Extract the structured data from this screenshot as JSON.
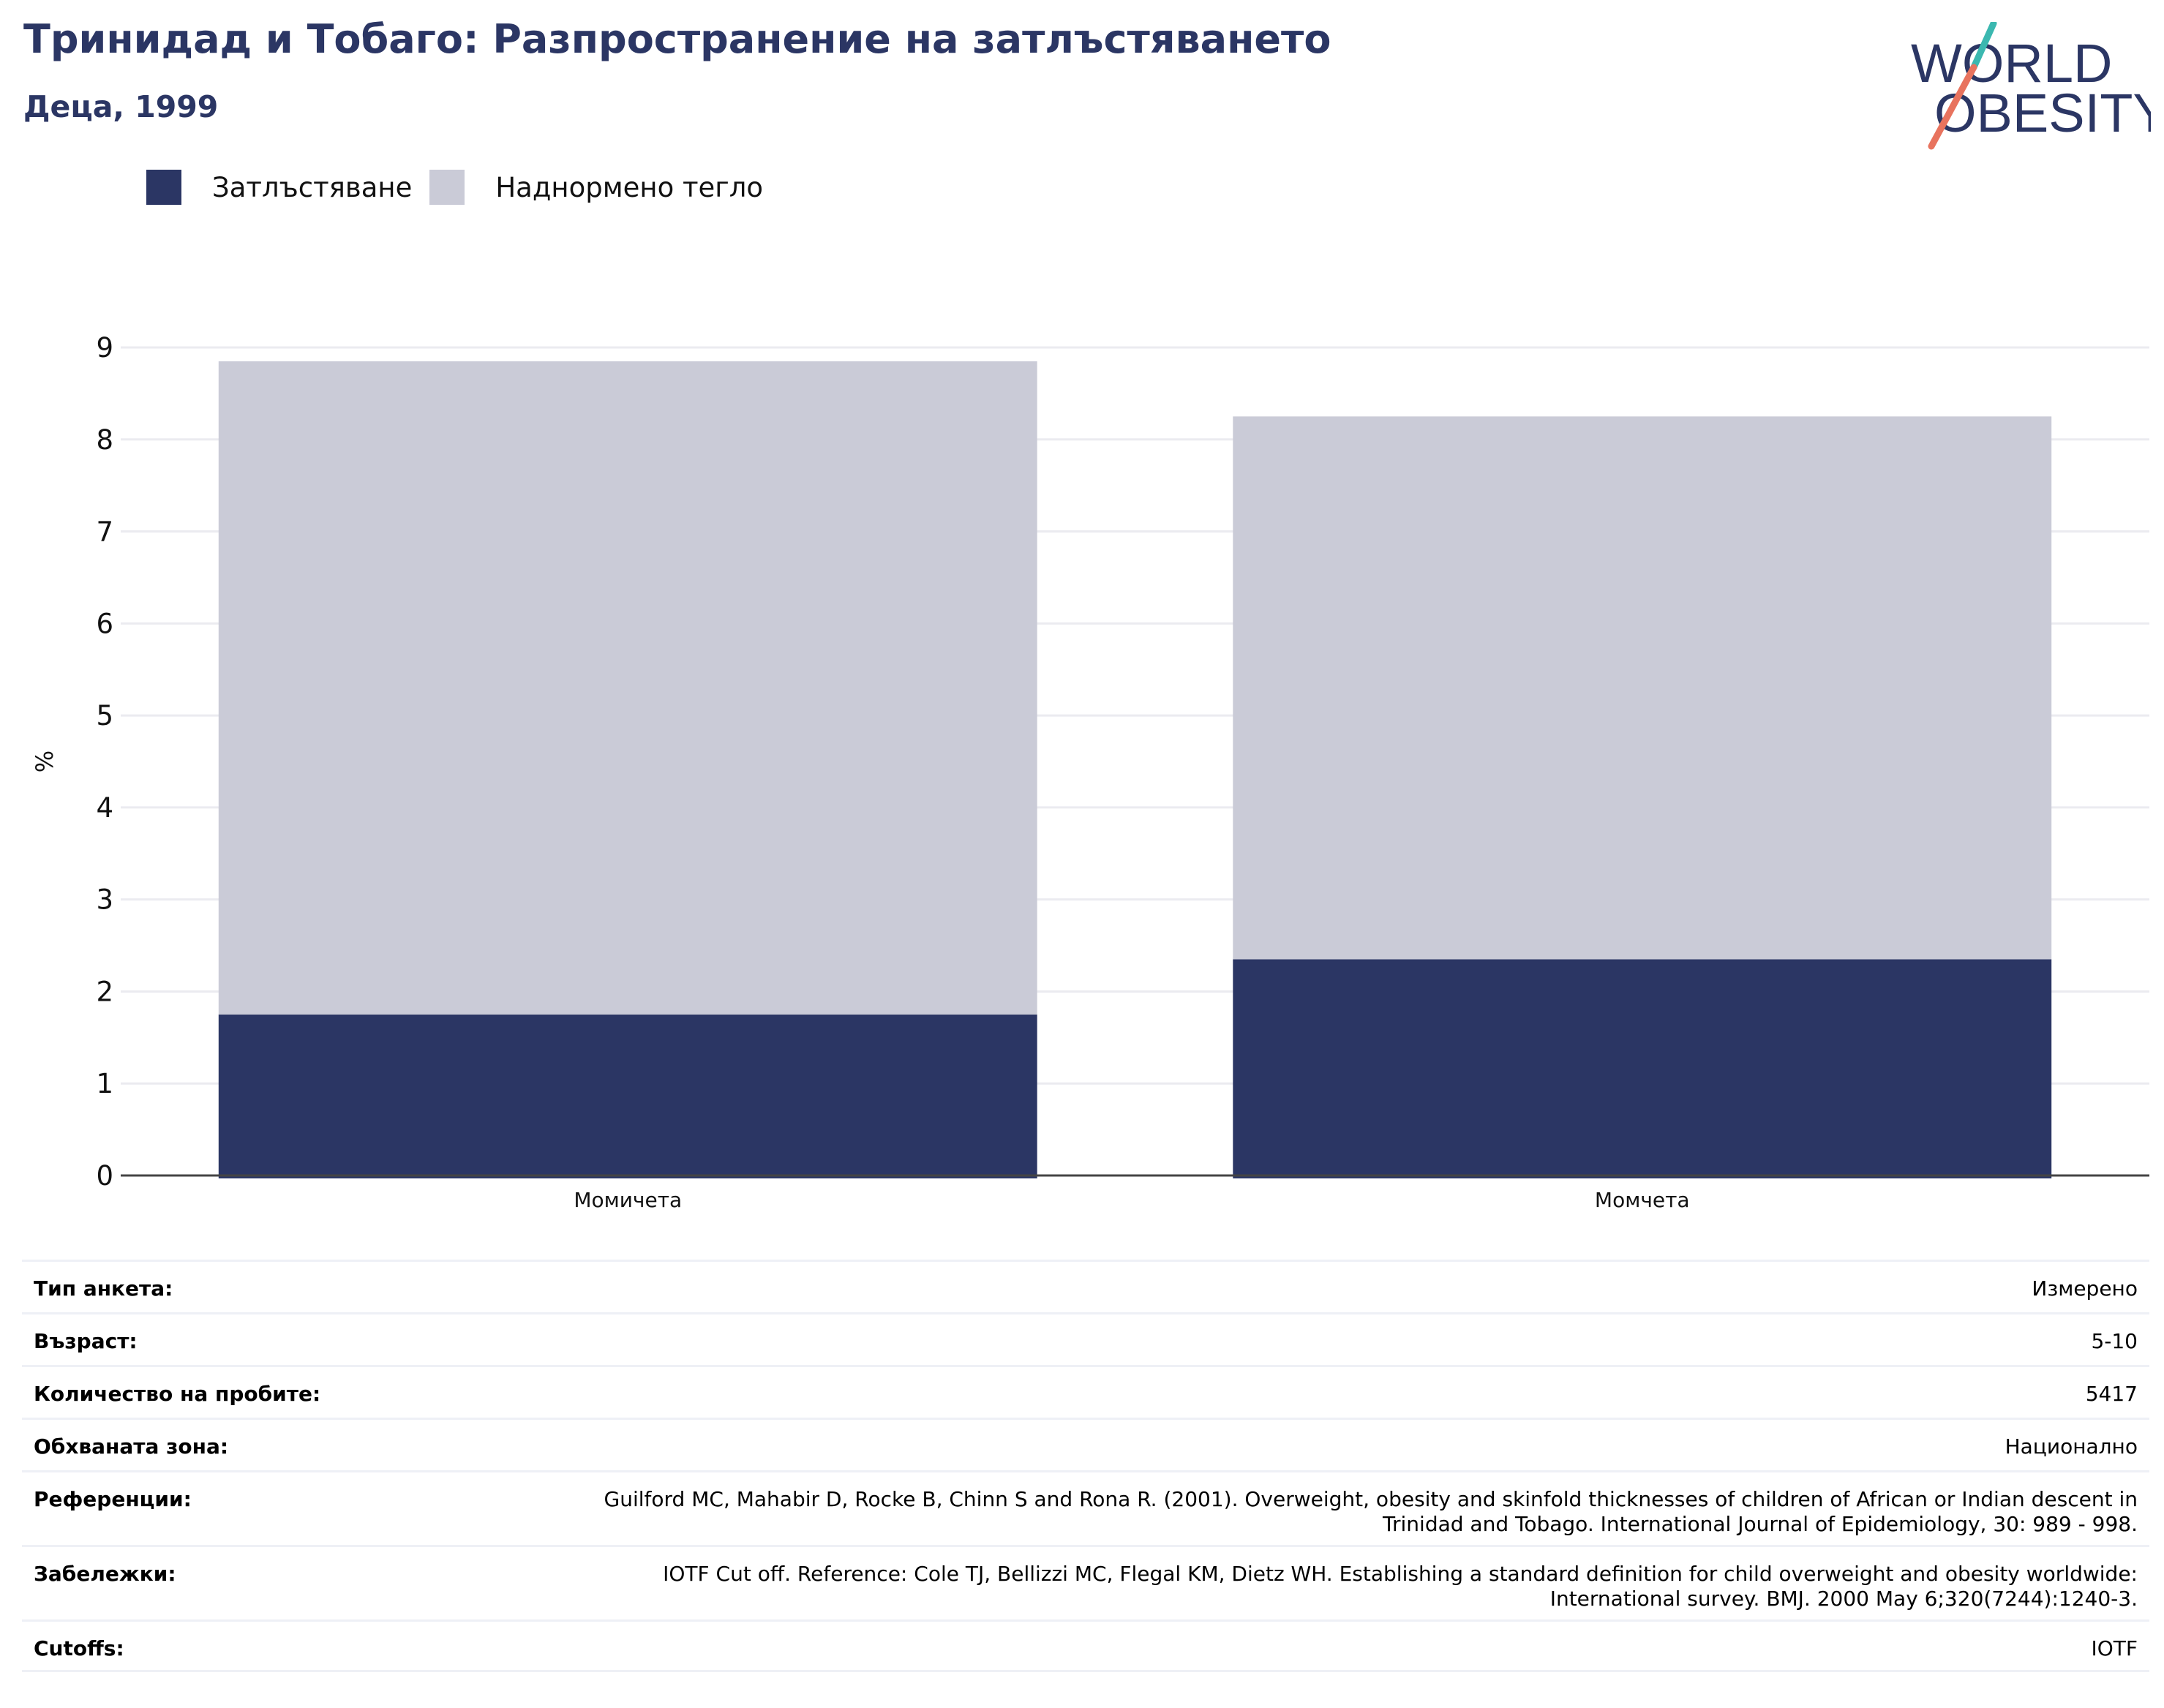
{
  "header": {
    "title": "Тринидад и Тобаго: Разпространение на затлъстяването",
    "subtitle": "Деца, 1999"
  },
  "logo": {
    "line1": "WORLD",
    "line2": "OBESITY",
    "colors": {
      "text": "#2b3664",
      "slash_top": "#3bb8b0",
      "slash_bottom": "#e8735e"
    }
  },
  "legend": [
    {
      "label": "Затлъстяване",
      "color": "#2b3664"
    },
    {
      "label": "Наднормено тегло",
      "color": "#cacbd7"
    }
  ],
  "chart_data": {
    "type": "bar",
    "stacked": true,
    "categories": [
      "Момичета",
      "Момчета"
    ],
    "series": [
      {
        "name": "Затлъстяване",
        "color": "#2b3664",
        "values": [
          1.75,
          2.35
        ]
      },
      {
        "name": "Наднормено тегло",
        "color": "#cacbd7",
        "values": [
          7.1,
          5.9
        ]
      }
    ],
    "ylabel": "%",
    "ylim": [
      0,
      9
    ],
    "yticks": [
      "0",
      "1",
      "2",
      "3",
      "4",
      "5",
      "6",
      "7",
      "8",
      "9"
    ],
    "grid": true
  },
  "meta": [
    {
      "label": "Тип анкета:",
      "value": "Измерено"
    },
    {
      "label": "Възраст:",
      "value": "5-10"
    },
    {
      "label": "Количество на пробите:",
      "value": "5417"
    },
    {
      "label": "Обхваната зона:",
      "value": "Национално"
    },
    {
      "label": "Референции:",
      "value": "Guilford MC, Mahabir D, Rocke B, Chinn S and Rona R. (2001). Overweight, obesity and skinfold thicknesses of children of African or Indian descent in Trinidad and Tobago. International Journal of Epidemiology, 30: 989 - 998."
    },
    {
      "label": "Забележки:",
      "value": "IOTF Cut off. Reference: Cole TJ, Bellizzi MC, Flegal KM, Dietz WH. Establishing a standard definition for child overweight and obesity worldwide: International survey. BMJ. 2000 May 6;320(7244):1240-3."
    },
    {
      "label": "Cutoffs:",
      "value": "IOTF"
    }
  ]
}
